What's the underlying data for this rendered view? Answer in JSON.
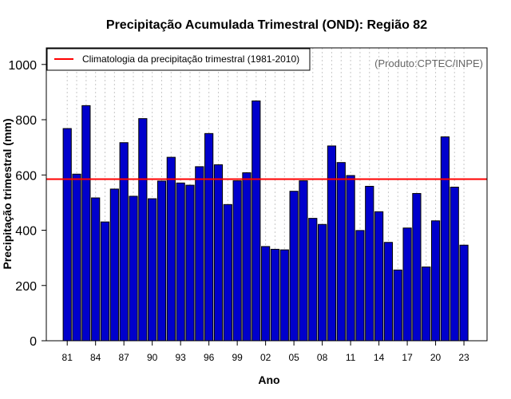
{
  "chart_data": {
    "type": "bar",
    "title": "Precipitação Acumulada Trimestral (OND): Região 82",
    "xlabel": "Ano",
    "ylabel": "Precipitação trimestral (mm)",
    "ylim": [
      0,
      1060
    ],
    "yticks": [
      0,
      200,
      400,
      600,
      800,
      1000
    ],
    "xtick_labels": [
      "81",
      "84",
      "87",
      "90",
      "93",
      "96",
      "99",
      "02",
      "05",
      "08",
      "11",
      "14",
      "17",
      "20",
      "23"
    ],
    "categories": [
      "1981",
      "1982",
      "1983",
      "1984",
      "1985",
      "1986",
      "1987",
      "1988",
      "1989",
      "1990",
      "1991",
      "1992",
      "1993",
      "1994",
      "1995",
      "1996",
      "1997",
      "1998",
      "1999",
      "2000",
      "2001",
      "2002",
      "2003",
      "2004",
      "2005",
      "2006",
      "2007",
      "2008",
      "2009",
      "2010",
      "2011",
      "2012",
      "2013",
      "2014",
      "2015",
      "2016",
      "2017",
      "2018",
      "2019",
      "2020",
      "2021",
      "2022",
      "2023"
    ],
    "values": [
      768,
      603,
      851,
      517,
      430,
      549,
      717,
      523,
      804,
      514,
      578,
      664,
      571,
      563,
      630,
      750,
      637,
      493,
      579,
      608,
      868,
      341,
      331,
      329,
      541,
      579,
      443,
      421,
      705,
      645,
      598,
      399,
      559,
      467,
      356,
      256,
      408,
      533,
      267,
      434,
      738,
      556,
      346
    ],
    "bar_color": "#0000cc",
    "climatology": {
      "value": 585,
      "color": "#ff0000",
      "label": "Climatologia da precipitação trimestral (1981-2010)"
    },
    "legend_position": "top-left",
    "grid": "vertical dotted",
    "credit": "(Produto:CPTEC/INPE)"
  }
}
